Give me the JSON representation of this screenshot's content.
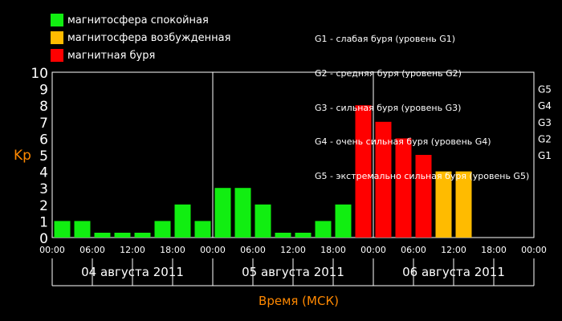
{
  "legend": [
    {
      "label": "магнитосфера спокойная",
      "color": "#11ee11"
    },
    {
      "label": "магнитосфера возбужденная",
      "color": "#ffbb00"
    },
    {
      "label": "магнитная буря",
      "color": "#ff0000"
    }
  ],
  "g_legend": [
    "G1 - слабая буря (уровень G1)",
    "G2 - средняя буря (уровень G2)",
    "G3 - сильная буря (уровень G3)",
    "G4 - очень сильная буря (уровень G4)",
    "G5 - экстремально сильная буря (уровень G5)"
  ],
  "chart_data": {
    "type": "bar",
    "ylabel": "Kp",
    "xlabel": "Время (МСК)",
    "ylim": [
      0,
      10
    ],
    "y_ticks": [
      "0",
      "1",
      "2",
      "3",
      "4",
      "5",
      "6",
      "7",
      "8",
      "9",
      "10"
    ],
    "g_ticks": [
      {
        "label": "G1",
        "kp": 5
      },
      {
        "label": "G2",
        "kp": 6
      },
      {
        "label": "G3",
        "kp": 7
      },
      {
        "label": "G4",
        "kp": 8
      },
      {
        "label": "G5",
        "kp": 9
      }
    ],
    "x_ticks": [
      "00:00",
      "06:00",
      "12:00",
      "18:00",
      "00:00",
      "06:00",
      "12:00",
      "18:00",
      "00:00",
      "06:00",
      "12:00",
      "18:00",
      "00:00"
    ],
    "days": [
      "04 августа 2011",
      "05 августа 2011",
      "06 августа 2011"
    ],
    "slots_per_day": 8,
    "values": [
      1,
      1,
      0,
      0,
      0,
      1,
      2,
      1,
      3,
      3,
      2,
      0,
      0,
      1,
      2,
      8,
      7,
      6,
      5,
      4,
      4
    ],
    "colors": {
      "quiet": "#11ee11",
      "active": "#ffbb00",
      "storm": "#ff0000"
    },
    "label_colors": {
      "axis_title": "#ff8800",
      "ticks": "#ffffff",
      "g_ticks": "#ffffff"
    }
  }
}
